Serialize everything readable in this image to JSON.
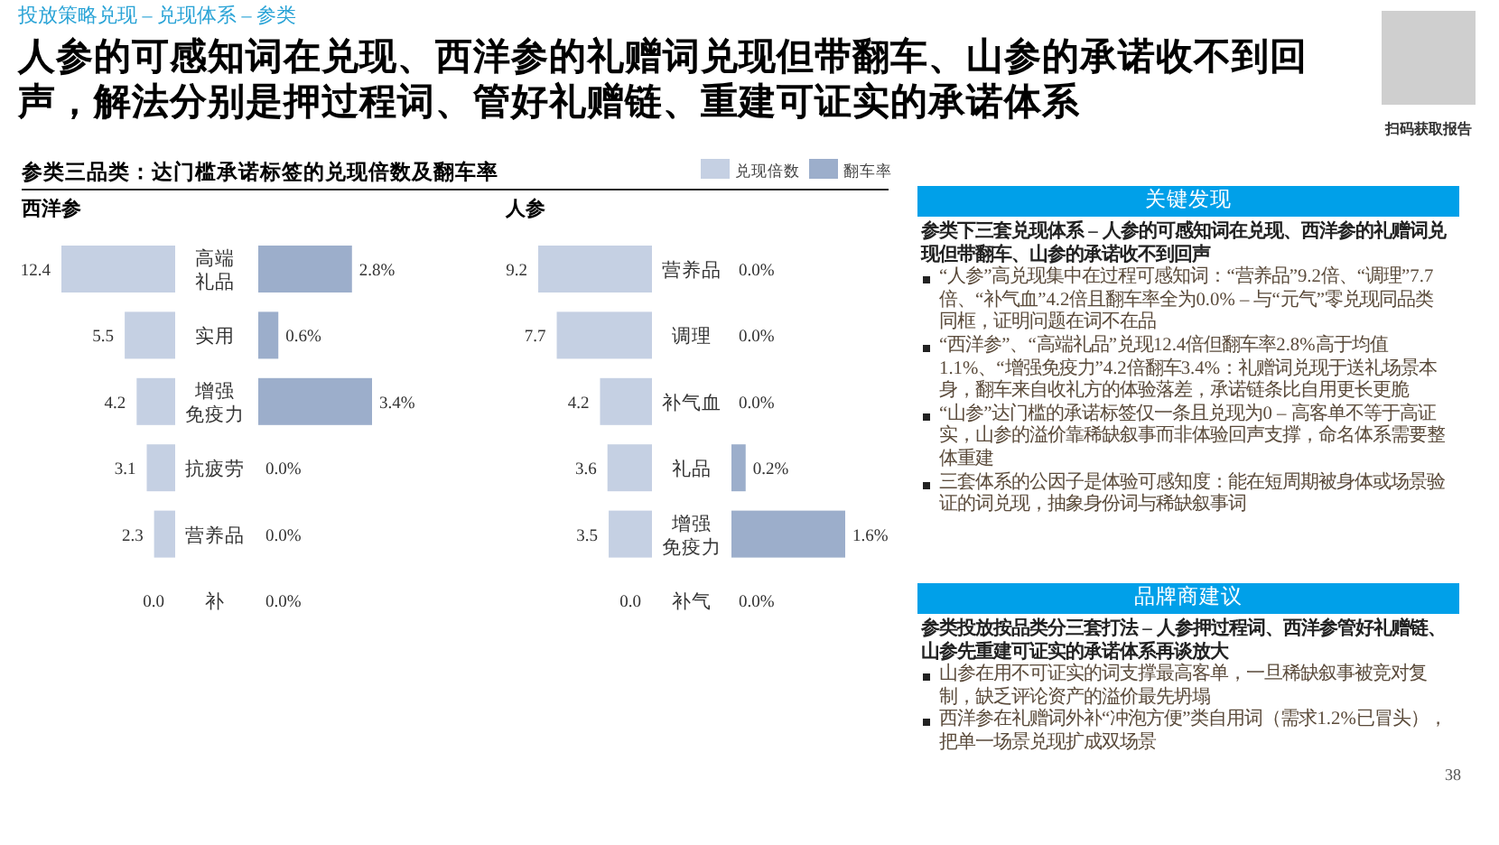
{
  "chart_data": [
    {
      "type": "other",
      "annotations": [
        "投放策略兑现 – 兑现体系 – 参类",
        "人参的可感知词在兑现、西洋参的礼赠词兑现但带翻车、山参的承诺收不到回声，解法分别是押过程词、管好礼赠链、重建可证实的承诺体系",
        "扫码获取报告",
        "38"
      ]
    },
    {
      "type": "bar",
      "orientation": "horizontal",
      "title": "参类三品类：达门槛承诺标签的兑现倍数及翻车率",
      "subtitle": "西洋参",
      "legend": "top right",
      "categories": [
        "高端礼品",
        "实用",
        "增强免疫力",
        "抗疲劳",
        "营养品",
        "补"
      ],
      "series": [
        {
          "name": "兑现倍数",
          "color": "#c5d0e3",
          "values": [
            12.4,
            5.5,
            4.2,
            3.1,
            2.3,
            0.0
          ],
          "value_labels": [
            "12.4",
            "5.5",
            "4.2",
            "3.1",
            "2.3",
            "0.0"
          ]
        }
      ]
    },
    {
      "type": "bar",
      "orientation": "horizontal",
      "legend": "top right",
      "tick_labels": false,
      "categories": [
        "高端礼品",
        "实用",
        "增强免疫力",
        "抗疲劳",
        "营养品",
        "补"
      ],
      "series": [
        {
          "name": "翻车率",
          "color": "#9caecb",
          "values": [
            2.8,
            0.6,
            3.4,
            0.0,
            0.0,
            0.0
          ],
          "value_labels": [
            "2.8%",
            "0.6%",
            "3.4%",
            "0.0%",
            "0.0%",
            "0.0%"
          ]
        }
      ]
    },
    {
      "type": "bar",
      "orientation": "horizontal",
      "subtitle": "人参",
      "categories": [
        "营养品",
        "调理",
        "补气血",
        "礼品",
        "增强免疫力",
        "补气"
      ],
      "series": [
        {
          "color": "#c5d0e3",
          "values": [
            9.2,
            7.7,
            4.2,
            3.6,
            3.5,
            0.0
          ],
          "value_labels": [
            "9.2",
            "7.7",
            "4.2",
            "3.6",
            "3.5",
            "0.0"
          ]
        }
      ]
    },
    {
      "type": "bar",
      "orientation": "horizontal",
      "tick_labels": false,
      "categories": [
        "营养品",
        "调理",
        "补气血",
        "礼品",
        "增强免疫力",
        "补气"
      ],
      "series": [
        {
          "color": "#9caecb",
          "values": [
            0.0,
            0.0,
            0.0,
            0.2,
            1.6,
            0.0
          ],
          "value_labels": [
            "0.0%",
            "0.0%",
            "0.0%",
            "0.2%",
            "1.6%",
            "0.0%"
          ]
        }
      ]
    },
    {
      "type": "other",
      "title": "关键发现",
      "annotations": [
        "参类下三套兑现体系 – 人参的可感知词在兑现、西洋参的礼赠词兑现但带翻车、山参的承诺收不到回声",
        "“人参”高兑现集中在过程可感知词：“营养品”9.2倍、“调理”7.7倍、“补气血”4.2倍且翻车率全为0.0% – 与“元气”零兑现同品类同框，证明问题在词不在品",
        "“西洋参”、“高端礼品”兑现12.4倍但翻车率2.8%高于均值1.1%、“增强免疫力”4.2倍翻车3.4%：礼赠词兑现于送礼场景本身，翻车来自收礼方的体验落差，承诺链条比自用更长更脆",
        "“山参”达门槛的承诺标签仅一条且兑现为0 – 高客单不等于高证实，山参的溢价靠稀缺叙事而非体验回声支撑，命名体系需要整体重建",
        "三套体系的公因子是体验可感知度：能在短周期被身体或场景验证的词兑现，抽象身份词与稀缺叙事词"
      ]
    },
    {
      "type": "other",
      "title": "品牌商建议",
      "annotations": [
        "参类投放按品类分三套打法 – 人参押过程词、西洋参管好礼赠链、山参先重建可证实的承诺体系再谈放大",
        "山参在用不可证实的词支撑最高客单，一旦稀缺叙事被竞对复制，缺乏评论资产的溢价最先坍塌",
        "西洋参在礼赠词外补“冲泡方便”类自用词（需求1.2%已冒头），把单一场景兑现扩成双场景"
      ]
    }
  ]
}
